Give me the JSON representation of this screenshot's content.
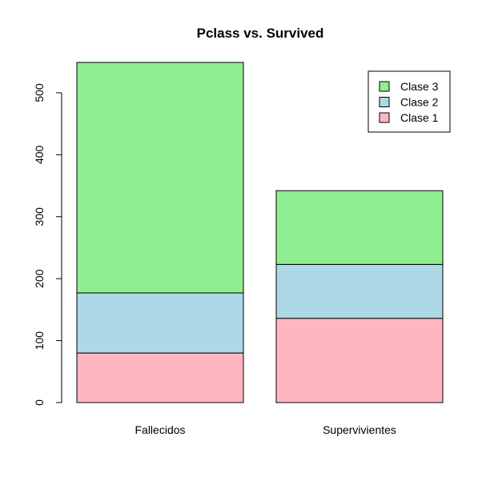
{
  "chart_data": {
    "type": "bar",
    "stacked": true,
    "title": "Pclass vs. Survived",
    "xlabel": "",
    "ylabel": "",
    "categories": [
      "Fallecidos",
      "Supervivientes"
    ],
    "series": [
      {
        "name": "Clase 1",
        "values": [
          80,
          136
        ],
        "color": "#FFB6C1"
      },
      {
        "name": "Clase 2",
        "values": [
          97,
          87
        ],
        "color": "#ADD8E6"
      },
      {
        "name": "Clase 3",
        "values": [
          372,
          119
        ],
        "color": "#90EE90"
      }
    ],
    "ylim": [
      0,
      549
    ],
    "yticks": [
      0,
      100,
      200,
      300,
      400,
      500
    ],
    "legend": {
      "position": "top-right",
      "order": [
        "Clase 3",
        "Clase 2",
        "Clase 1"
      ]
    },
    "grid": false
  }
}
